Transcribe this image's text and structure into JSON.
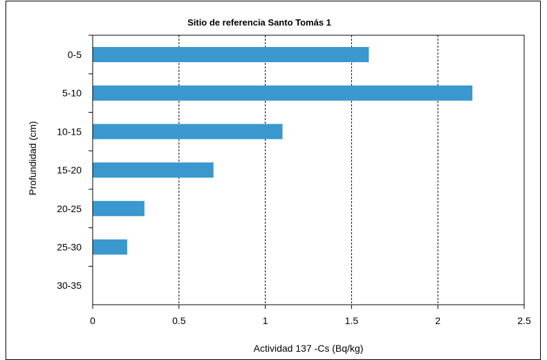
{
  "chart_data": {
    "type": "bar",
    "orientation": "horizontal",
    "title": "Sitio de referencia Santo Tomás 1",
    "xlabel": "Actividad 137 -Cs (Bq/kg)",
    "ylabel": "Profundidad (cm)",
    "categories": [
      "0-5",
      "5-10",
      "10-15",
      "15-20",
      "20-25",
      "25-30",
      "30-35"
    ],
    "values": [
      1.6,
      2.2,
      1.1,
      0.7,
      0.3,
      0.2,
      null
    ],
    "xlim": [
      0,
      2.5
    ],
    "xticks": [
      "0",
      "0.5",
      "1",
      "1.5",
      "2",
      "2.5"
    ],
    "xtick_values": [
      0,
      0.5,
      1,
      1.5,
      2,
      2.5
    ],
    "grid": "vertical dashed",
    "legend": "none",
    "bar_color": "#3a98cf"
  }
}
